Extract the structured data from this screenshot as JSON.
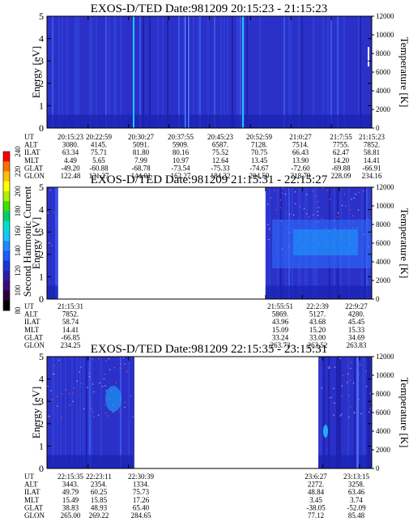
{
  "colorbar": {
    "label": "Second Harmonic Current",
    "ticks": [
      "80",
      "100",
      "120",
      "140",
      "160",
      "180",
      "200",
      "220",
      "240"
    ],
    "colors": [
      "#000000",
      "#2a0038",
      "#3a0a78",
      "#2b1fa8",
      "#1c35d8",
      "#1a5cff",
      "#1a8cff",
      "#18c6ff",
      "#00e0c8",
      "#00d06a",
      "#40e000",
      "#b0f000",
      "#ffff00",
      "#ffc000",
      "#ff7000",
      "#ff0000"
    ]
  },
  "panels": [
    {
      "title": "EXOS-D/TED   Date:981209  20:15:23 - 21:15:23",
      "ylabel": "Energy [eV]",
      "y2label": "Temperature [K]",
      "yticks": [
        "0",
        "1",
        "2",
        "3",
        "4",
        "5"
      ],
      "y2ticks": [
        "0",
        "2000",
        "4000",
        "6000",
        "8000",
        "10000",
        "12000"
      ],
      "ephem_labels": [
        "UT",
        "ALT",
        "ILAT",
        "MLT",
        "GLAT",
        "GLON"
      ],
      "ephem": [
        [
          "20:15:23",
          "3080.",
          "63.34",
          "4.49",
          "-49.20",
          "122.48"
        ],
        [
          "20:22:59",
          "4145.",
          "75.71",
          "5.65",
          "-60.88",
          "131.27"
        ],
        [
          "20:30:27",
          "5091.",
          "81.80",
          "7.99",
          "-68.78",
          "144.01"
        ],
        [
          "20:37:55",
          "5909.",
          "80.16",
          "10.97",
          "-73.54",
          "162.27"
        ],
        [
          "20:45:23",
          "6587.",
          "75.52",
          "12.64",
          "-75.33",
          "184.32"
        ],
        [
          "20:52:59",
          "7128.",
          "70.75",
          "13.45",
          "-74.67",
          "204.59"
        ],
        [
          "21:0:27",
          "7514.",
          "66.43",
          "13.90",
          "-72.60",
          "218.79"
        ],
        [
          "21:7:55",
          "7755.",
          "62.47",
          "14.20",
          "-69.88",
          "228.09"
        ],
        [
          "21:15:23",
          "7852.",
          "58.81",
          "14.41",
          "-66.91",
          "234.16"
        ]
      ]
    },
    {
      "title": "EXOS-D/TED   Date:981209  21:15:31 - 22:15:27",
      "ylabel": "Energy [eV]",
      "y2label": "Temperature [K]",
      "yticks": [
        "0",
        "1",
        "2",
        "3",
        "4",
        "5"
      ],
      "y2ticks": [
        "0",
        "2000",
        "4000",
        "6000",
        "8000",
        "10000",
        "12000"
      ],
      "ephem_labels": [
        "UT",
        "ALT",
        "ILAT",
        "MLT",
        "GLAT",
        "GLON"
      ],
      "ephem": [
        [
          "21:15:31",
          "7852.",
          "58.74",
          "14.41",
          "-66.85",
          "234.25"
        ],
        [
          "21:55:51",
          "5869.",
          "43.96",
          "15.09",
          "33.24",
          "263.73"
        ],
        [
          "22:2:39",
          "5127.",
          "43.68",
          "15.20",
          "33.00",
          "263.52"
        ],
        [
          "22:9:27",
          "4280.",
          "45.45",
          "15.33",
          "34.69",
          "263.83"
        ]
      ]
    },
    {
      "title": "EXOS-D/TED   Date:981209  22:15:35 - 23:15:31",
      "ylabel": "Energy [eV]",
      "y2label": "Temperature [K]",
      "yticks": [
        "0",
        "1",
        "2",
        "3",
        "4",
        "5"
      ],
      "y2ticks": [
        "0",
        "2000",
        "4000",
        "6000",
        "8000",
        "10000",
        "12000"
      ],
      "ephem_labels": [
        "UT",
        "ALT",
        "ILAT",
        "MLT",
        "GLAT",
        "GLON"
      ],
      "ephem": [
        [
          "22:15:35",
          "3443.",
          "49.79",
          "15.49",
          "38.83",
          "265.00"
        ],
        [
          "22:23:11",
          "2354.",
          "60.25",
          "15.85",
          "48.93",
          "269.22"
        ],
        [
          "22:30:39",
          "1334.",
          "75.73",
          "17.26",
          "65.40",
          "284.65"
        ],
        [
          "23:6:27",
          "2272.",
          "48.84",
          "3.45",
          "-38.05",
          "77.12"
        ],
        [
          "23:13:15",
          "3258.",
          "63.46",
          "3.74",
          "-52.09",
          "85.48"
        ]
      ]
    }
  ],
  "chart_data": [
    {
      "type": "heatmap",
      "title": "EXOS-D/TED   Date:981209  20:15:23 - 21:15:23",
      "x_label": "UT",
      "x_ticks": [
        "20:15:23",
        "20:22:59",
        "20:30:27",
        "20:37:55",
        "20:45:23",
        "20:52:59",
        "21:0:27",
        "21:7:55",
        "21:15:23"
      ],
      "ylabel": "Energy [eV]",
      "ylim": [
        0,
        5
      ],
      "y2label": "Temperature [K]",
      "y2lim": [
        0,
        12000
      ],
      "coverage": [
        [
          "20:15:23",
          "21:15:23"
        ]
      ]
    },
    {
      "type": "heatmap",
      "title": "EXOS-D/TED   Date:981209  21:15:31 - 22:15:27",
      "x_label": "UT",
      "x_ticks": [
        "21:15:31",
        "21:55:51",
        "22:2:39",
        "22:9:27"
      ],
      "ylabel": "Energy [eV]",
      "ylim": [
        0,
        5
      ],
      "y2label": "Temperature [K]",
      "y2lim": [
        0,
        12000
      ],
      "coverage": [
        [
          "21:15:31",
          "21:17:30"
        ],
        [
          "21:55:51",
          "22:15:27"
        ]
      ]
    },
    {
      "type": "heatmap",
      "title": "EXOS-D/TED   Date:981209  22:15:35 - 23:15:31",
      "x_label": "UT",
      "x_ticks": [
        "22:15:35",
        "22:23:11",
        "22:30:39",
        "23:6:27",
        "23:13:15"
      ],
      "ylabel": "Energy [eV]",
      "ylim": [
        0,
        5
      ],
      "y2label": "Temperature [K]",
      "y2lim": [
        0,
        12000
      ],
      "coverage": [
        [
          "22:15:35",
          "22:31:30"
        ],
        [
          "23:5:40",
          "23:15:31"
        ]
      ]
    }
  ]
}
